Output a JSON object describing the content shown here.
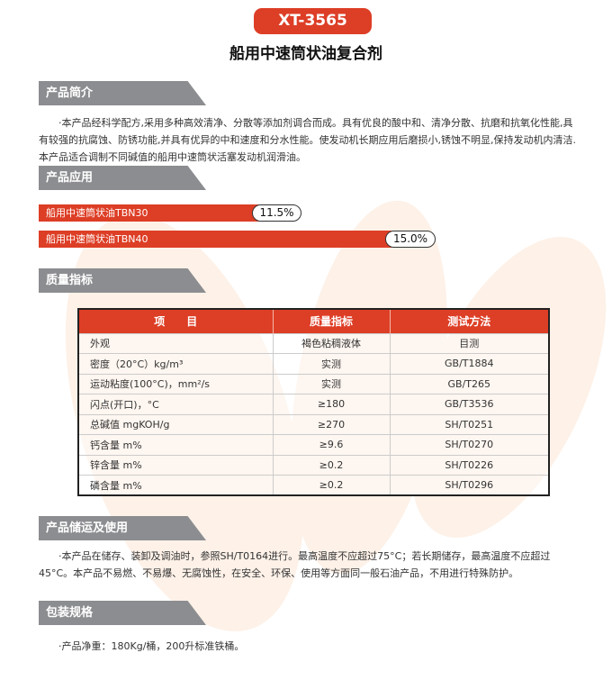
{
  "header": {
    "model": "XT-3565",
    "title": "船用中速筒状油复合剂"
  },
  "sections": {
    "intro": {
      "heading": "产品简介",
      "text": "·本产品经科学配方,采用多种高效清净、分散等添加剂调合而成。具有优良的酸中和、清净分散、抗磨和抗氧化性能,具有较强的抗腐蚀、防锈功能,并具有优异的中和速度和分水性能。使发动机长期应用后磨损小,锈蚀不明显,保持发动机内清洁.本产品适合调制不同碱值的船用中速筒状活塞发动机润滑油。"
    },
    "application": {
      "heading": "产品应用",
      "items": [
        {
          "label": "船用中速筒状油TBN30",
          "value": "11.5%",
          "percent": 11.5
        },
        {
          "label": "船用中速筒状油TBN40",
          "value": "15.0%",
          "percent": 15.0
        }
      ]
    },
    "quality": {
      "heading": "质量指标",
      "columns": [
        "项　　目",
        "质量指标",
        "测试方法"
      ],
      "rows": [
        [
          "外观",
          "褐色粘稠液体",
          "目测"
        ],
        [
          "密度（20°C）kg/m³",
          "实测",
          "GB/T1884"
        ],
        [
          "运动粘度(100°C)，mm²/s",
          "实测",
          "GB/T265"
        ],
        [
          "闪点(开口)，°C",
          "≥180",
          "GB/T3536"
        ],
        [
          "总碱值 mgKOH/g",
          "≥270",
          "SH/T0251"
        ],
        [
          "钙含量 m%",
          "≥9.6",
          "SH/T0270"
        ],
        [
          "锌含量 m%",
          "≥0.2",
          "SH/T0226"
        ],
        [
          "磷含量 m%",
          "≥0.2",
          "SH/T0296"
        ]
      ]
    },
    "storage": {
      "heading": "产品储运及使用",
      "text": "·本产品在储存、装卸及调油时，参照SH/T0164进行。最高温度不应超过75°C；若长期储存，最高温度不应超过45°C。本产品不易燃、不易爆、无腐蚀性，在安全、环保、使用等方面同一般石油产品，不用进行特殊防护。"
    },
    "packaging": {
      "heading": "包装规格",
      "text": "·产品净重：180Kg/桶，200升标准铁桶。"
    }
  },
  "colors": {
    "accent": "#dd3e26",
    "section_bg": "#8c8d90",
    "watermark": "#fdf1e8"
  }
}
